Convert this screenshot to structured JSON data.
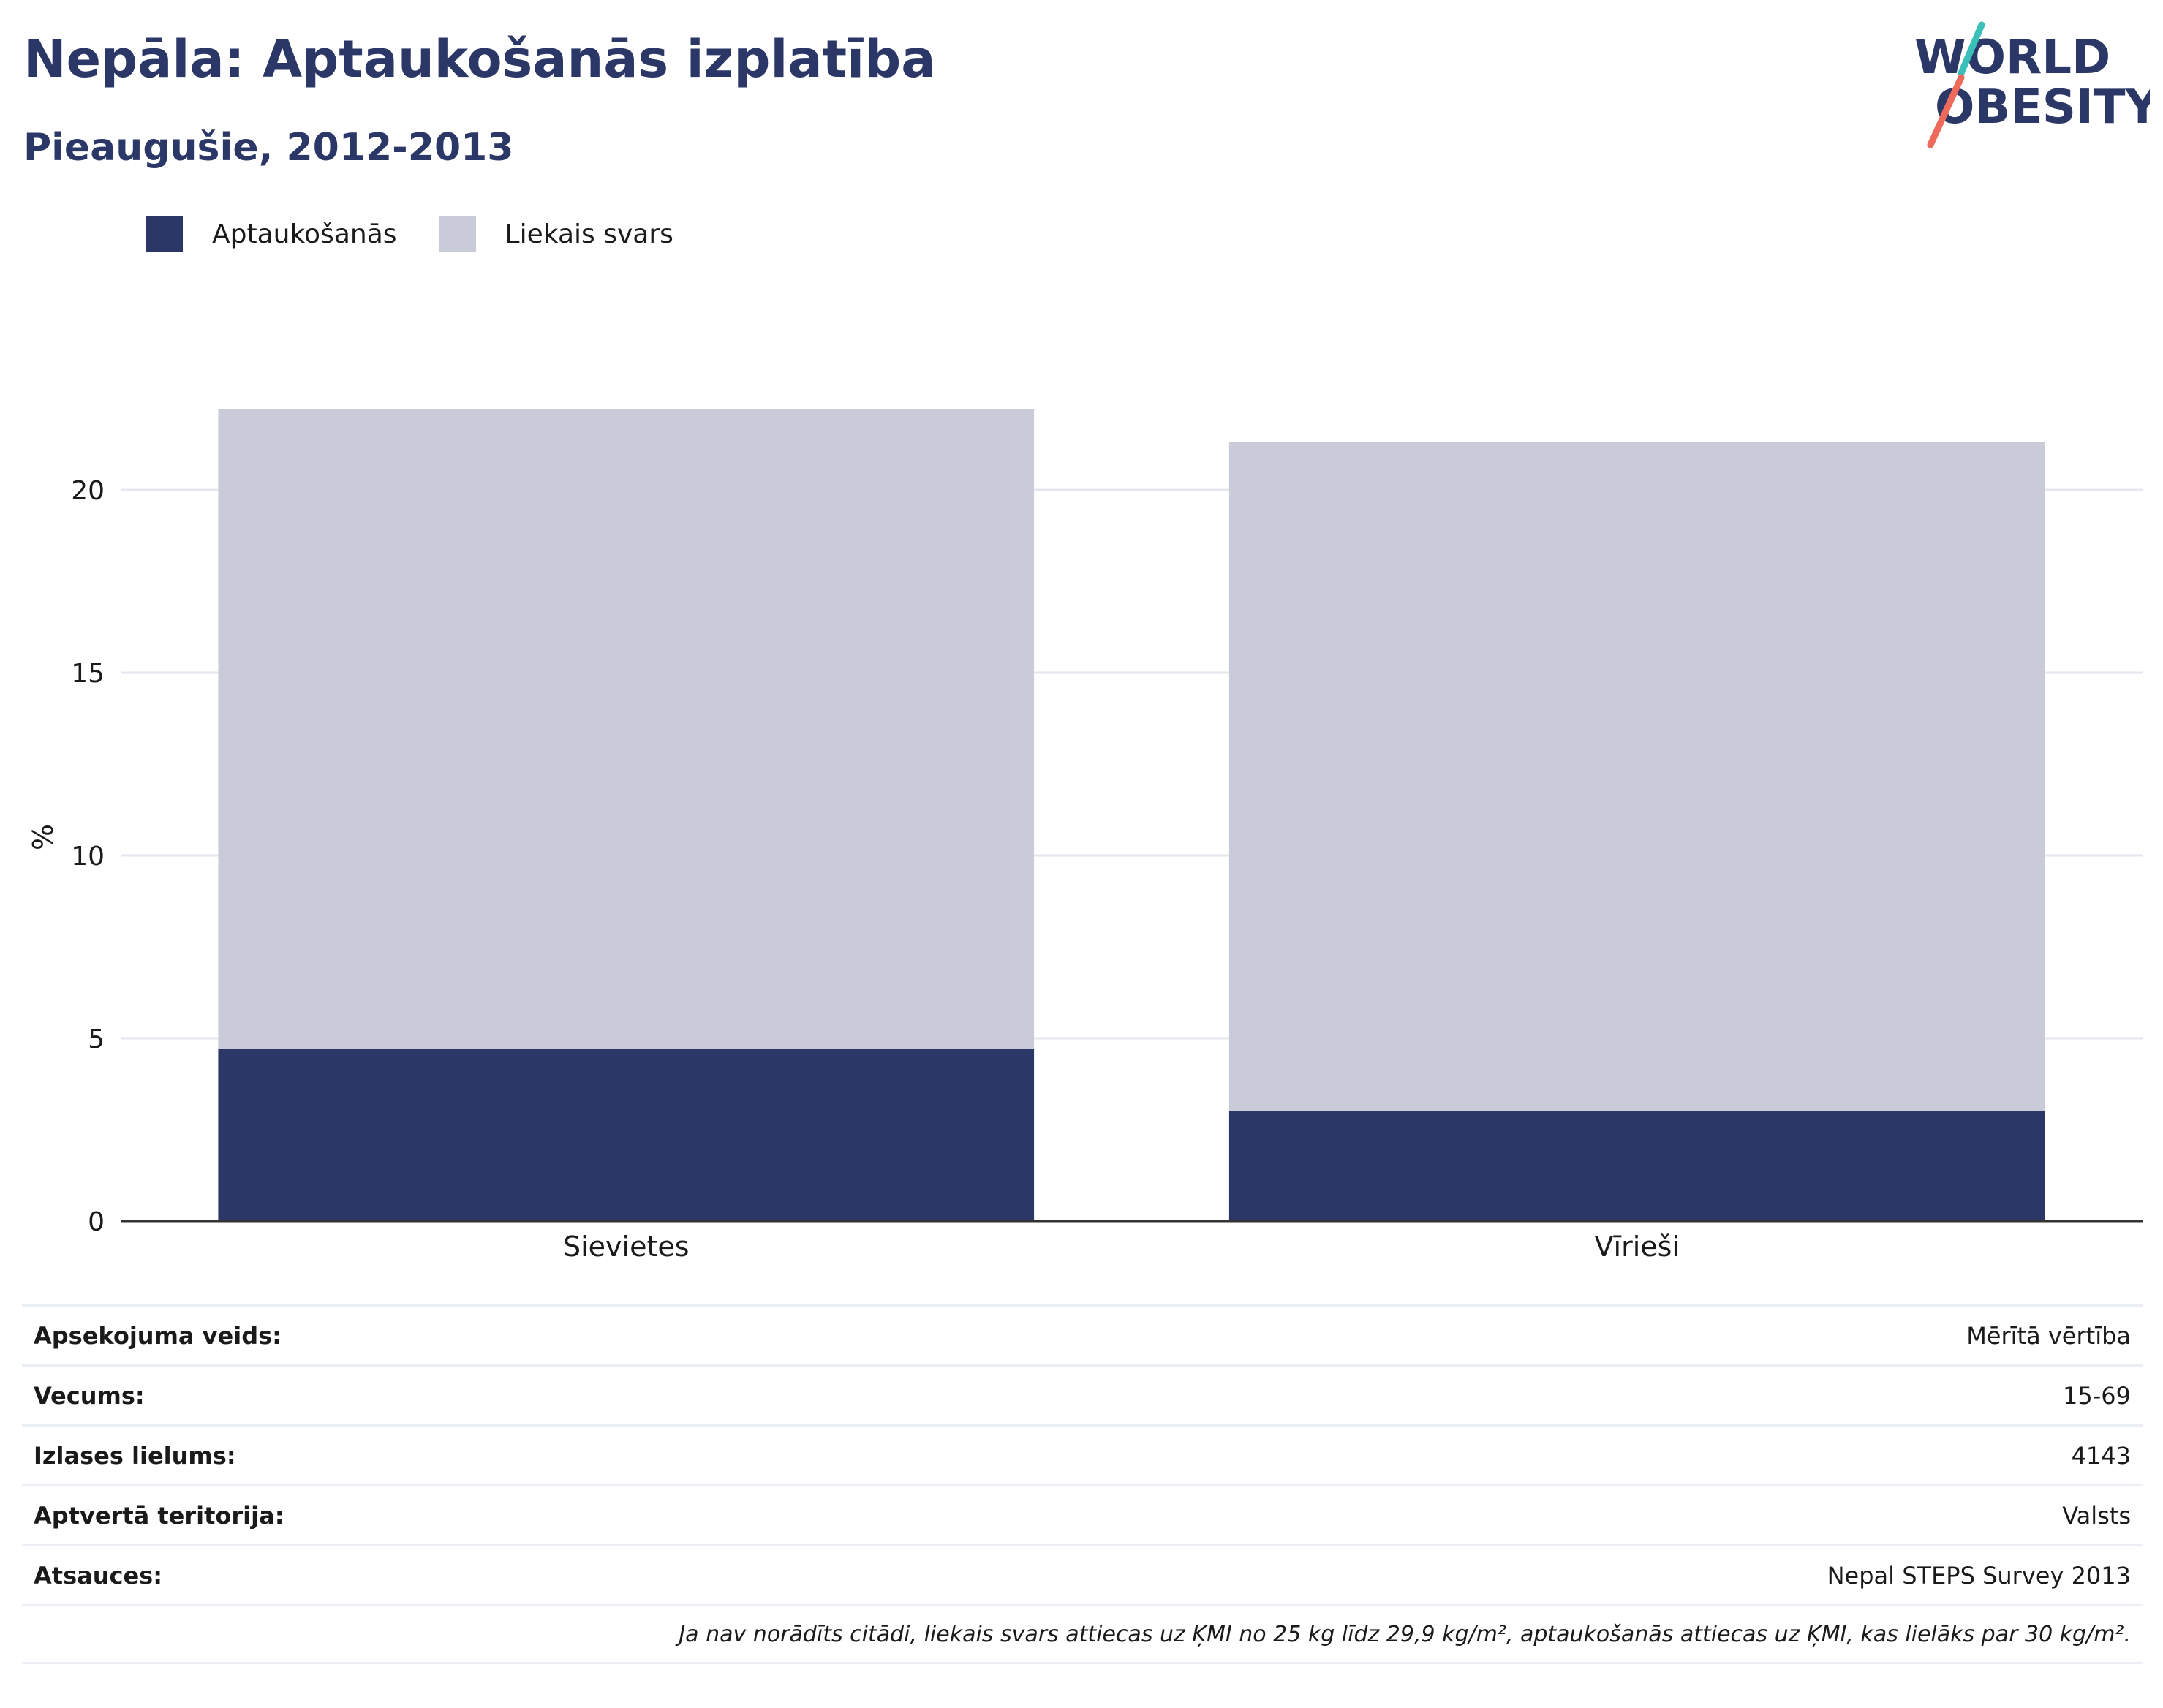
{
  "header": {
    "title": "Nepāla: Aptaukošanās izplatība",
    "subtitle": "Pieaugušie, 2012-2013"
  },
  "logo": {
    "line1": "WORLD",
    "line2": "OBESITY",
    "text_color": "#2b3766",
    "accent_teal": "#3bbfb9",
    "accent_coral": "#ee6a5a"
  },
  "colors": {
    "obesity": "#2b3766",
    "overweight": "#c9ccd8",
    "grid": "#e6e7ee",
    "axis": "#333333"
  },
  "chart_data": {
    "type": "bar",
    "stacked": true,
    "categories": [
      "Sievietes",
      "Vīrieši"
    ],
    "series": [
      {
        "name": "Aptaukošanās",
        "values": [
          4.7,
          3.0
        ]
      },
      {
        "name": "Liekais svars",
        "values": [
          17.5,
          18.3
        ]
      }
    ],
    "ylabel": "%",
    "ylim": [
      0,
      22.2
    ],
    "yticks": [
      0,
      5,
      10,
      15,
      20
    ],
    "grid": true,
    "legend_position": "top-left"
  },
  "info": {
    "rows": [
      {
        "label": "Apsekojuma veids:",
        "value": "Mērītā vērtība"
      },
      {
        "label": "Vecums:",
        "value": "15-69"
      },
      {
        "label": "Izlases lielums:",
        "value": "4143"
      },
      {
        "label": "Aptvertā teritorija:",
        "value": "Valsts"
      },
      {
        "label": "Atsauces:",
        "value": "Nepal STEPS Survey 2013"
      }
    ],
    "note": "Ja nav norādīts citādi, liekais svars attiecas uz ĶMI no 25 kg līdz 29,9 kg/m², aptaukošanās attiecas uz ĶMI, kas lielāks par 30 kg/m²."
  }
}
